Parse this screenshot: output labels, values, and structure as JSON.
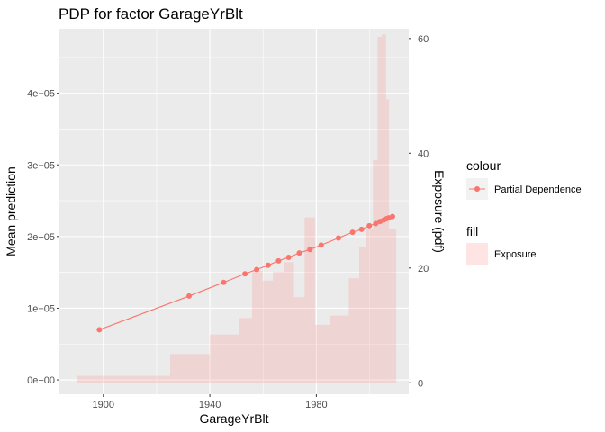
{
  "chart_data": {
    "type": "line",
    "title": "PDP for factor GarageYrBlt",
    "xlabel": "GarageYrBlt",
    "ylabel": "Mean prediction",
    "y2label": "Exposure (pdf)",
    "xlim": [
      1883.5,
      2014.7
    ],
    "ylim": [
      -20000,
      490000
    ],
    "y2lim": [
      -2.0,
      61.7
    ],
    "x_ticks": [
      {
        "value": 1900,
        "label": "1900"
      },
      {
        "value": 1940,
        "label": "1940"
      },
      {
        "value": 1980,
        "label": "1980"
      }
    ],
    "y_ticks": [
      {
        "value": 0,
        "label": "0e+00"
      },
      {
        "value": 100000,
        "label": "1e+05"
      },
      {
        "value": 200000,
        "label": "2e+05"
      },
      {
        "value": 300000,
        "label": "3e+05"
      },
      {
        "value": 400000,
        "label": "4e+05"
      }
    ],
    "y2_ticks": [
      {
        "value": 0,
        "label": "0"
      },
      {
        "value": 20,
        "label": "20"
      },
      {
        "value": 40,
        "label": "40"
      },
      {
        "value": 60,
        "label": "60"
      }
    ],
    "grid": true,
    "series": [
      {
        "name": "Partial Dependence",
        "kind": "line_points",
        "color": "#f8766d",
        "x": [
          1898.5,
          1932.2,
          1945.2,
          1953.2,
          1957.6,
          1961.9,
          1965.8,
          1969.6,
          1973.6,
          1977.6,
          1981.8,
          1988.3,
          1993.6,
          1997.0,
          1999.9,
          2002.3,
          2003.9,
          2005.3,
          2006.4,
          2007.2,
          2008.6
        ],
        "values": [
          70000,
          117000,
          136000,
          148000,
          154000,
          160000,
          166000,
          171000,
          177000,
          182000,
          188000,
          198000,
          206000,
          210000,
          215000,
          218000,
          221000,
          223000,
          225000,
          226000,
          228000
        ]
      },
      {
        "name": "Exposure",
        "kind": "histogram",
        "axis": "secondary",
        "color": "#f8766d",
        "bins": [
          {
            "x0": 1890.0,
            "x1": 1925.1,
            "value": 1.2
          },
          {
            "x0": 1925.1,
            "x1": 1940.0,
            "value": 5.0
          },
          {
            "x0": 1940.0,
            "x1": 1951.0,
            "value": 8.4
          },
          {
            "x0": 1951.0,
            "x1": 1955.9,
            "value": 11.3
          },
          {
            "x0": 1955.9,
            "x1": 1959.8,
            "value": 19.5
          },
          {
            "x0": 1959.8,
            "x1": 1963.7,
            "value": 17.8
          },
          {
            "x0": 1963.7,
            "x1": 1967.7,
            "value": 19.3
          },
          {
            "x0": 1967.7,
            "x1": 1971.6,
            "value": 21.0
          },
          {
            "x0": 1971.6,
            "x1": 1975.6,
            "value": 14.9
          },
          {
            "x0": 1975.6,
            "x1": 1979.5,
            "value": 28.8
          },
          {
            "x0": 1979.5,
            "x1": 1985.2,
            "value": 10.1
          },
          {
            "x0": 1985.2,
            "x1": 1992.2,
            "value": 11.7
          },
          {
            "x0": 1992.2,
            "x1": 1996.1,
            "value": 18.2
          },
          {
            "x0": 1996.1,
            "x1": 1998.5,
            "value": 23.7
          },
          {
            "x0": 1998.5,
            "x1": 2001.3,
            "value": 26.8
          },
          {
            "x0": 2001.3,
            "x1": 2003.0,
            "value": 38.8
          },
          {
            "x0": 2003.0,
            "x1": 2004.6,
            "value": 60.3
          },
          {
            "x0": 2004.6,
            "x1": 2006.2,
            "value": 60.7
          },
          {
            "x0": 2006.2,
            "x1": 2007.3,
            "value": 49.4
          },
          {
            "x0": 2007.3,
            "x1": 2010.0,
            "value": 26.8
          }
        ]
      }
    ],
    "legend": {
      "placement": "right",
      "colour_title": "colour",
      "colour_label": "Partial Dependence",
      "fill_title": "fill",
      "fill_label": "Exposure"
    },
    "colors": {
      "panel": "#ebebeb",
      "grid_major": "#ffffff",
      "series": "#f8766d",
      "histogram_fill": "#f8766d",
      "histogram_opacity": 0.2
    }
  }
}
